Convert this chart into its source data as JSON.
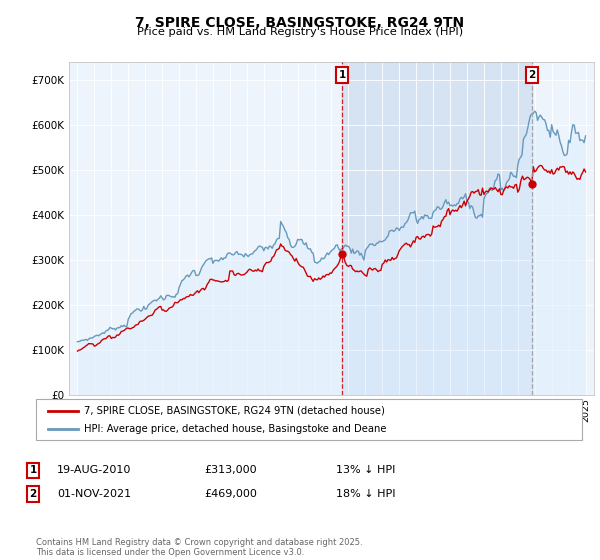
{
  "title": "7, SPIRE CLOSE, BASINGSTOKE, RG24 9TN",
  "subtitle": "Price paid vs. HM Land Registry's House Price Index (HPI)",
  "ylabel_ticks": [
    "£0",
    "£100K",
    "£200K",
    "£300K",
    "£400K",
    "£500K",
    "£600K",
    "£700K"
  ],
  "ytick_vals": [
    0,
    100000,
    200000,
    300000,
    400000,
    500000,
    600000,
    700000
  ],
  "ylim": [
    0,
    740000
  ],
  "xlim_start": 1994.5,
  "xlim_end": 2025.5,
  "legend_line1": "7, SPIRE CLOSE, BASINGSTOKE, RG24 9TN (detached house)",
  "legend_line2": "HPI: Average price, detached house, Basingstoke and Deane",
  "marker1_date": "19-AUG-2010",
  "marker1_price": "£313,000",
  "marker1_hpi": "13% ↓ HPI",
  "marker1_x": 2010.63,
  "marker1_y": 313000,
  "marker2_date": "01-NOV-2021",
  "marker2_price": "£469,000",
  "marker2_hpi": "18% ↓ HPI",
  "marker2_x": 2021.83,
  "marker2_y": 469000,
  "color_red": "#cc0000",
  "color_blue_fill": "#ddeeff",
  "color_blue_line": "#6699bb",
  "background_color": "#eef4fb",
  "shade_color": "#ccddf0",
  "footer": "Contains HM Land Registry data © Crown copyright and database right 2025.\nThis data is licensed under the Open Government Licence v3.0."
}
